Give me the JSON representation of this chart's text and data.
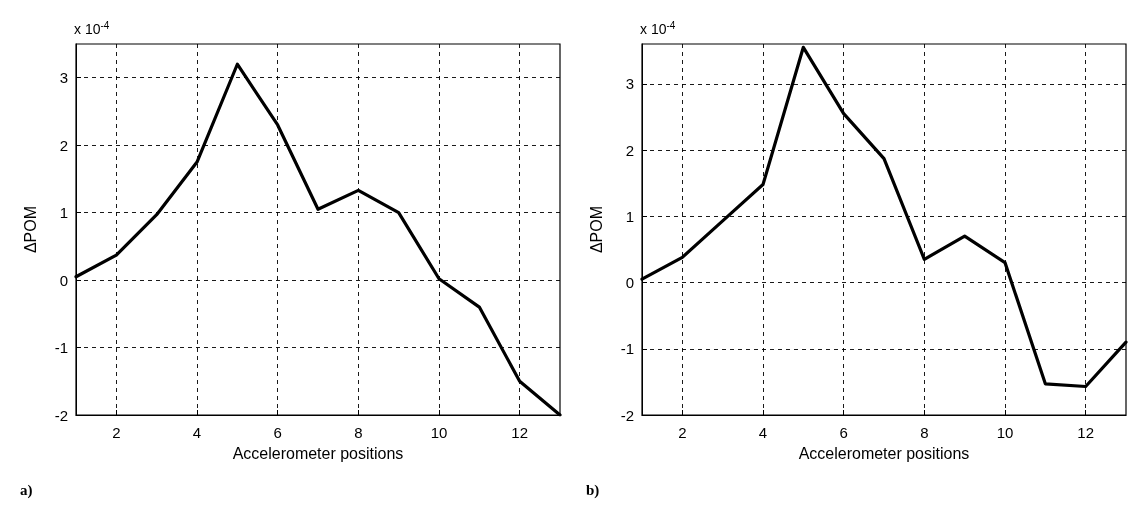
{
  "chart_data": [
    {
      "type": "line",
      "xlabel": "Accelerometer positions",
      "ylabel": "ΔPOM",
      "annotations": [
        "x 10$^{-4}$",
        "a)"
      ],
      "x": [
        1,
        2,
        3,
        4,
        5,
        6,
        7,
        8,
        9,
        10,
        11,
        12,
        13
      ],
      "series": [
        {
          "color": "#000000",
          "values": [
            0.05,
            0.37,
            0.97,
            1.75,
            3.2,
            2.3,
            1.05,
            1.33,
            1.0,
            0.02,
            -0.4,
            -1.5,
            -2.0
          ]
        }
      ],
      "xlim": [
        1,
        13
      ],
      "xticks": [
        2,
        4,
        6,
        8,
        10,
        12
      ],
      "ylim": [
        -2,
        3.5
      ],
      "yticks": [
        -2,
        -1,
        0,
        1,
        2,
        3
      ],
      "grid": true,
      "marker": "none",
      "line_style": "solid"
    },
    {
      "type": "line",
      "xlabel": "Accelerometer positions",
      "ylabel": "ΔPOM",
      "annotations": [
        "x 10$^{-4}$",
        "b)"
      ],
      "x": [
        1,
        2,
        3,
        4,
        5,
        6,
        7,
        8,
        9,
        10,
        11,
        12,
        13
      ],
      "series": [
        {
          "color": "#000000",
          "values": [
            0.05,
            0.38,
            0.93,
            1.48,
            3.55,
            2.55,
            1.87,
            0.35,
            0.7,
            0.3,
            -1.53,
            -1.57,
            -0.9
          ]
        }
      ],
      "xlim": [
        1,
        13
      ],
      "xticks": [
        2,
        4,
        6,
        8,
        10,
        12
      ],
      "ylim": [
        -2,
        3.6
      ],
      "yticks": [
        -2,
        -1,
        0,
        1,
        2,
        3
      ],
      "grid": true,
      "marker": "none",
      "line_style": "solid"
    }
  ]
}
